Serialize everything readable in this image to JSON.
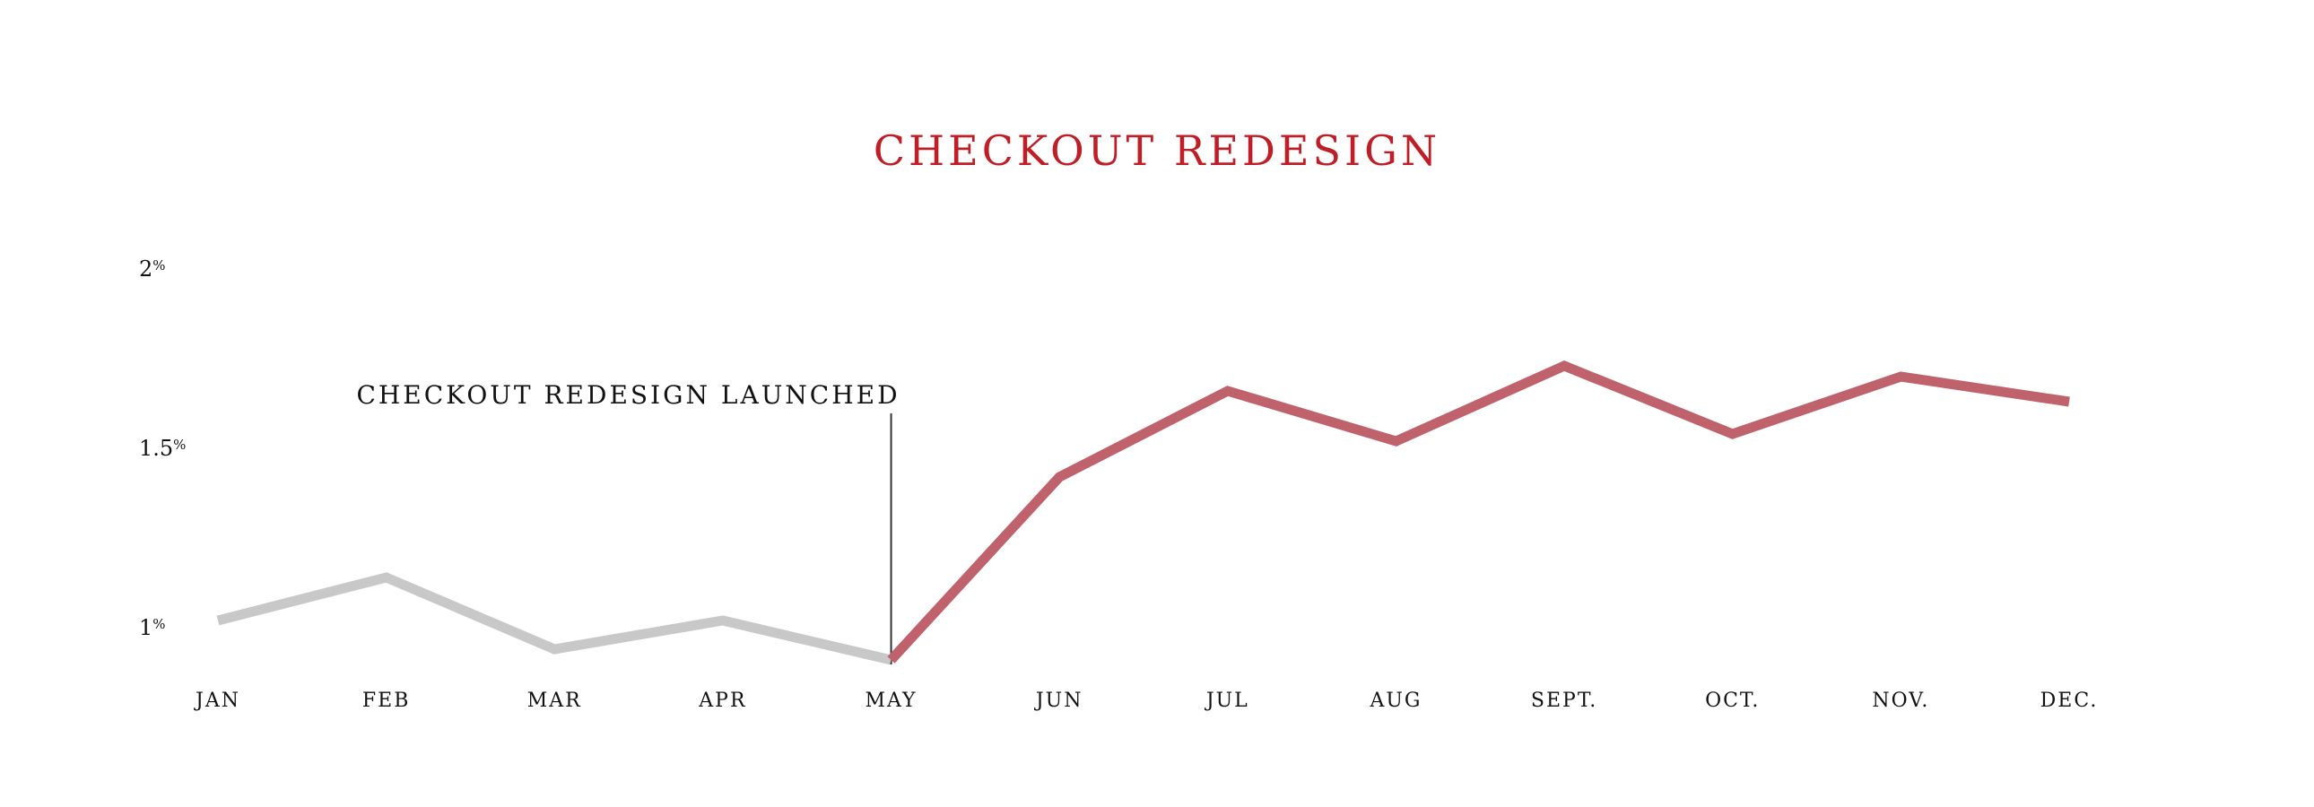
{
  "chart_data": {
    "type": "line",
    "title": "CHECKOUT REDESIGN",
    "xlabel": "",
    "ylabel": "",
    "categories": [
      "JAN",
      "FEB",
      "MAR",
      "APR",
      "MAY",
      "JUN",
      "JUL",
      "AUG",
      "SEPT.",
      "OCT.",
      "NOV.",
      "DEC."
    ],
    "series": [
      {
        "name": "",
        "values": [
          1.02,
          1.14,
          0.94,
          1.02,
          0.91,
          1.42,
          1.66,
          1.52,
          1.73,
          1.54,
          1.7,
          1.63
        ]
      }
    ],
    "before_color": "#c8c8c8",
    "after_color": "#c0626c",
    "title_color": "#c01e26",
    "ylim": [
      0.9,
      2.0
    ],
    "yticks": [
      {
        "value": 1,
        "label": "1",
        "suffix": "%"
      },
      {
        "value": 1.5,
        "label": "1.5",
        "suffix": "%"
      },
      {
        "value": 2,
        "label": "2",
        "suffix": "%"
      }
    ],
    "annotation": {
      "text": "CHECKOUT REDESIGN LAUNCHED",
      "category": "MAY"
    },
    "grid": false,
    "legend": "none"
  }
}
